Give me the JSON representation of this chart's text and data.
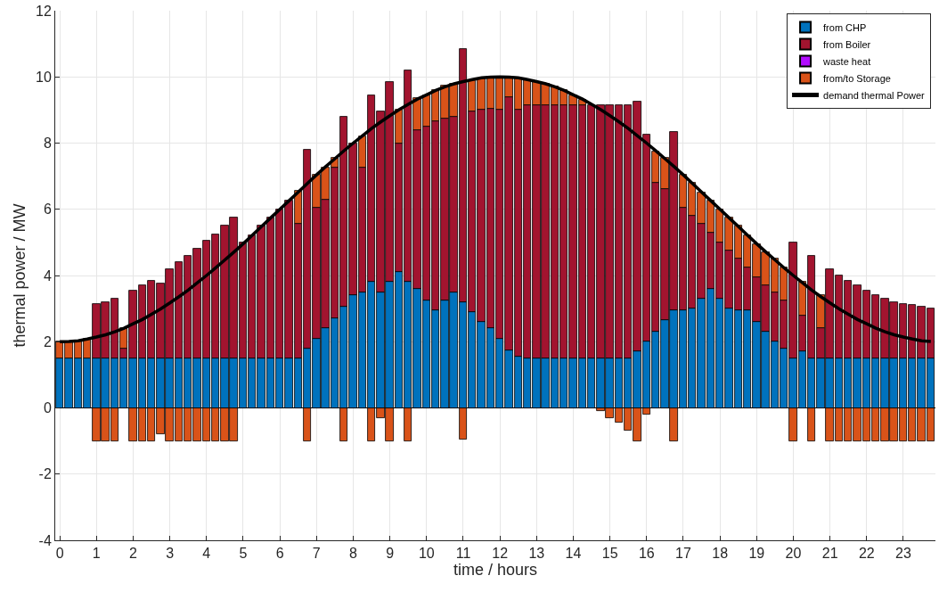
{
  "chart_data": {
    "type": "bar",
    "stacked": true,
    "xlabel": "time / hours",
    "ylabel": "thermal power / MW",
    "x": [
      0,
      0.25,
      0.5,
      0.75,
      1,
      1.25,
      1.5,
      1.75,
      2,
      2.25,
      2.5,
      2.75,
      3,
      3.25,
      3.5,
      3.75,
      4,
      4.25,
      4.5,
      4.75,
      5,
      5.25,
      5.5,
      5.75,
      6,
      6.25,
      6.5,
      6.75,
      7,
      7.25,
      7.5,
      7.75,
      8,
      8.25,
      8.5,
      8.75,
      9,
      9.25,
      9.5,
      9.75,
      10,
      10.25,
      10.5,
      10.75,
      11,
      11.25,
      11.5,
      11.75,
      12,
      12.25,
      12.5,
      12.75,
      13,
      13.25,
      13.5,
      13.75,
      14,
      14.25,
      14.5,
      14.75,
      15,
      15.25,
      15.5,
      15.75,
      16,
      16.25,
      16.5,
      16.75,
      17,
      17.25,
      17.5,
      17.75,
      18,
      18.25,
      18.5,
      18.75,
      19,
      19.25,
      19.5,
      19.75,
      20,
      20.25,
      20.5,
      20.75,
      21,
      21.25,
      21.5,
      21.75,
      22,
      22.25,
      22.5,
      22.75,
      23,
      23.25,
      23.5,
      23.75
    ],
    "xlim": [
      -0.125,
      23.875
    ],
    "xticks": [
      0,
      1,
      2,
      3,
      4,
      5,
      6,
      7,
      8,
      9,
      10,
      11,
      12,
      13,
      14,
      15,
      16,
      17,
      18,
      19,
      20,
      21,
      22,
      23
    ],
    "ylim": [
      -4,
      12
    ],
    "yticks": [
      -4,
      -2,
      0,
      2,
      4,
      6,
      8,
      10,
      12
    ],
    "grid": true,
    "legend": "top right",
    "series": [
      {
        "name": "from CHP",
        "color": "#0072bd",
        "values": [
          1.5,
          1.5,
          1.5,
          1.5,
          1.5,
          1.5,
          1.5,
          1.5,
          1.5,
          1.5,
          1.5,
          1.5,
          1.5,
          1.5,
          1.5,
          1.5,
          1.5,
          1.5,
          1.5,
          1.5,
          1.5,
          1.5,
          1.5,
          1.5,
          1.5,
          1.5,
          1.5,
          1.8,
          2.1,
          2.4,
          2.7,
          3.05,
          3.4,
          3.5,
          3.8,
          3.5,
          3.8,
          4.1,
          3.8,
          3.6,
          3.25,
          2.95,
          3.25,
          3.5,
          3.2,
          2.9,
          2.6,
          2.4,
          2.1,
          1.75,
          1.55,
          1.5,
          1.5,
          1.5,
          1.5,
          1.5,
          1.5,
          1.5,
          1.5,
          1.5,
          1.5,
          1.5,
          1.5,
          1.7,
          2.0,
          2.3,
          2.65,
          2.95,
          2.95,
          3.0,
          3.3,
          3.6,
          3.3,
          3.0,
          2.95,
          2.95,
          2.6,
          2.3,
          2.0,
          1.8,
          1.5,
          1.7,
          1.5,
          1.5,
          1.5,
          1.5,
          1.5,
          1.5,
          1.5,
          1.5,
          1.5,
          1.5,
          1.5,
          1.5,
          1.5,
          1.5
        ]
      },
      {
        "name": "from Boiler",
        "color": "#a2142f",
        "values": [
          0,
          0,
          0,
          0,
          1.65,
          1.7,
          1.8,
          0.3,
          2.05,
          2.2,
          2.35,
          2.25,
          2.7,
          2.9,
          3.1,
          3.3,
          3.55,
          3.75,
          4.0,
          4.25,
          3.5,
          3.7,
          4.0,
          4.25,
          4.5,
          4.75,
          4.05,
          6.0,
          3.95,
          3.9,
          4.55,
          5.75,
          4.6,
          3.75,
          5.65,
          5.45,
          6.05,
          3.9,
          6.4,
          4.8,
          5.25,
          5.7,
          5.5,
          5.3,
          7.65,
          6.05,
          6.4,
          6.65,
          6.9,
          7.65,
          7.45,
          7.65,
          7.65,
          7.65,
          7.65,
          7.65,
          7.65,
          7.65,
          7.65,
          7.65,
          7.65,
          7.65,
          7.65,
          7.55,
          6.25,
          4.5,
          3.95,
          5.4,
          3.1,
          2.8,
          2.25,
          1.7,
          1.7,
          1.75,
          1.55,
          1.3,
          1.35,
          1.4,
          1.5,
          1.45,
          3.5,
          1.1,
          3.1,
          0.9,
          2.7,
          2.5,
          2.35,
          2.2,
          2.05,
          1.9,
          1.8,
          1.7,
          1.65,
          1.6,
          1.55,
          1.5
        ]
      },
      {
        "name": "waste heat",
        "color": "#b20cff",
        "values": [
          0,
          0,
          0,
          0,
          0,
          0,
          0,
          0,
          0,
          0,
          0,
          0,
          0,
          0,
          0,
          0,
          0,
          0,
          0,
          0,
          0,
          0,
          0,
          0,
          0,
          0,
          0,
          0,
          0,
          0,
          0,
          0,
          0,
          0,
          0,
          0,
          0,
          0,
          0,
          0,
          0,
          0,
          0,
          0,
          0,
          0,
          0,
          0,
          0,
          0,
          0,
          0,
          0,
          0,
          0,
          0,
          0,
          0,
          0,
          0,
          0,
          0,
          0,
          0,
          0,
          0,
          0,
          0,
          0,
          0,
          0,
          0,
          0,
          0,
          0,
          0,
          0,
          0,
          0,
          0,
          0,
          0,
          0,
          0,
          0,
          0,
          0,
          0,
          0,
          0,
          0,
          0,
          0,
          0,
          0,
          0
        ]
      },
      {
        "name": "from/to Storage",
        "color": "#d95319",
        "values": [
          0.5,
          0.5,
          0.5,
          0.6,
          -1,
          -1,
          -1,
          0.6,
          -1,
          -1,
          -1,
          -0.8,
          -1,
          -1,
          -1,
          -1,
          -1,
          -1,
          -1,
          -1,
          0,
          0,
          0,
          0,
          0,
          0,
          1.0,
          -1,
          1.0,
          0.95,
          0.3,
          -1,
          0,
          0.95,
          -1,
          -0.3,
          -1,
          1.0,
          -1,
          0.95,
          0.95,
          0.95,
          1.0,
          1.0,
          -0.95,
          0.95,
          0.95,
          0.95,
          1.0,
          0.55,
          0.95,
          0.75,
          0.7,
          0.65,
          0.55,
          0.45,
          0.3,
          0.15,
          0,
          -0.1,
          -0.3,
          -0.45,
          -0.7,
          -1,
          -0.2,
          0.95,
          0.95,
          -1,
          1.0,
          1.0,
          0.95,
          0.95,
          1.0,
          1.0,
          1.0,
          0.95,
          1.0,
          1.0,
          1.0,
          1.0,
          -1,
          1.0,
          -1,
          1.0,
          -1,
          -1,
          -1,
          -1,
          -1,
          -1,
          -1,
          -1,
          -1,
          -1,
          -1,
          -1
        ]
      },
      {
        "name": "demand thermal Power",
        "type": "line",
        "color": "#000000",
        "values": [
          2.0,
          2.01,
          2.03,
          2.08,
          2.14,
          2.21,
          2.3,
          2.41,
          2.54,
          2.67,
          2.83,
          2.99,
          3.17,
          3.36,
          3.56,
          3.78,
          4.0,
          4.23,
          4.47,
          4.71,
          4.96,
          5.22,
          5.48,
          5.74,
          6.0,
          6.26,
          6.52,
          6.78,
          7.04,
          7.29,
          7.53,
          7.77,
          8.0,
          8.22,
          8.44,
          8.64,
          8.83,
          9.01,
          9.17,
          9.33,
          9.46,
          9.59,
          9.7,
          9.79,
          9.86,
          9.92,
          9.97,
          9.99,
          10.0,
          9.99,
          9.97,
          9.92,
          9.86,
          9.79,
          9.7,
          9.59,
          9.46,
          9.33,
          9.17,
          9.01,
          8.83,
          8.64,
          8.44,
          8.22,
          8.0,
          7.77,
          7.53,
          7.29,
          7.04,
          6.78,
          6.52,
          6.26,
          6.0,
          5.74,
          5.48,
          5.22,
          4.96,
          4.71,
          4.47,
          4.23,
          4.0,
          3.78,
          3.56,
          3.36,
          3.17,
          2.99,
          2.83,
          2.67,
          2.54,
          2.41,
          2.3,
          2.21,
          2.14,
          2.08,
          2.03,
          2.01
        ]
      }
    ]
  }
}
